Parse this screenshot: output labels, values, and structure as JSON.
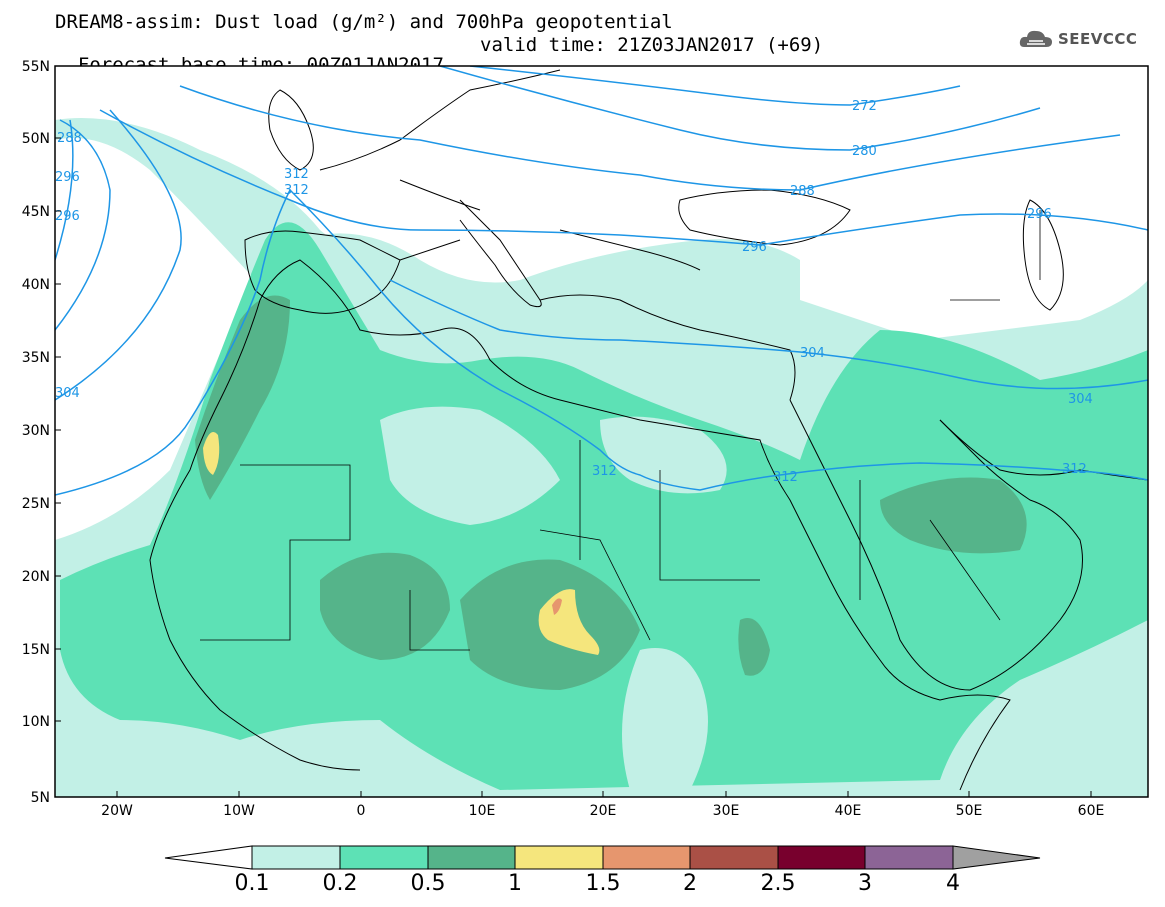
{
  "header": {
    "title_line1": "DREAM8-assim: Dust load (g/m²) and 700hPa geopotential",
    "title_line2": "Forecast base time: 00Z01JAN2017",
    "valid_time": "valid time: 21Z03JAN2017 (+69)"
  },
  "logo": {
    "text": "SEEVCCC",
    "icon": "cloud-logo-icon"
  },
  "map": {
    "lat_labels": [
      "55N",
      "50N",
      "45N",
      "40N",
      "35N",
      "30N",
      "25N",
      "20N",
      "15N",
      "10N",
      "5N"
    ],
    "lon_labels": [
      "20W",
      "10W",
      "0",
      "10E",
      "20E",
      "30E",
      "40E",
      "50E",
      "60E"
    ],
    "contour_labels": [
      "272",
      "280",
      "288",
      "296",
      "296",
      "296",
      "304",
      "304",
      "312",
      "312",
      "312",
      "312",
      "312",
      "288",
      "296",
      "304"
    ],
    "background_color": "#ffffff",
    "coastline_color": "#000000",
    "contour_color": "#1e96e6"
  },
  "colorbar": {
    "labels": [
      "0.1",
      "0.2",
      "0.5",
      "1",
      "1.5",
      "2",
      "2.5",
      "3",
      "4"
    ],
    "colors": [
      "#c2f0e6",
      "#5de1b5",
      "#55b48a",
      "#f5e67d",
      "#e6966e",
      "#aa5046",
      "#78002d",
      "#8c6496",
      "#a0a0a0"
    ]
  }
}
